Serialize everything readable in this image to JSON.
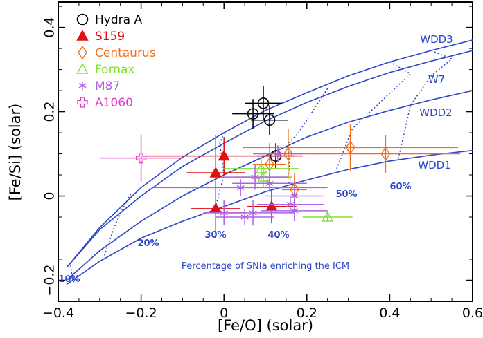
{
  "chart_data": {
    "type": "scatter",
    "title": "",
    "xlabel": "[Fe/O] (solar)",
    "ylabel": "[Fe/Si] (solar)",
    "xlim": [
      -0.4,
      0.6
    ],
    "ylim": [
      -0.25,
      0.46
    ],
    "x_ticks": [
      -0.4,
      -0.2,
      0,
      0.2,
      0.4,
      0.6
    ],
    "x_tick_labels": [
      "−0.4",
      "−0.2",
      "0",
      "0.2",
      "0.4",
      "0.6"
    ],
    "y_ticks": [
      -0.2,
      0,
      0.2,
      0.4
    ],
    "y_tick_labels": [
      "−0.2",
      "0",
      "0.2",
      "0.4"
    ],
    "grid": false,
    "legend_position": "top-left",
    "colors": {
      "axis": "#000000",
      "model": "#2b46c8",
      "hydra": "#000000",
      "s159": "#e01010",
      "centaurus": "#f07020",
      "fornax": "#80e030",
      "m87": "#b060e0",
      "a1060": "#e040c0"
    },
    "series": [
      {
        "name": "Hydra A",
        "color_key": "hydra",
        "marker": "circle-open",
        "points": [
          {
            "x": 0.07,
            "y": 0.195,
            "xerr": 0.05,
            "yerr": 0.035
          },
          {
            "x": 0.095,
            "y": 0.22,
            "xerr": 0.045,
            "yerr": 0.04
          },
          {
            "x": 0.11,
            "y": 0.18,
            "xerr": 0.045,
            "yerr": 0.035
          },
          {
            "x": 0.125,
            "y": 0.095,
            "xerr": 0.045,
            "yerr": 0.03
          }
        ]
      },
      {
        "name": "S159",
        "color_key": "s159",
        "marker": "triangle-filled",
        "points": [
          {
            "x": 0.0,
            "y": 0.095,
            "xerr": 0.19,
            "yerr": 0.045
          },
          {
            "x": -0.02,
            "y": 0.055,
            "xerr": 0.07,
            "yerr": 0.09
          },
          {
            "x": -0.02,
            "y": -0.03,
            "xerr": 0.06,
            "yerr": 0.07
          },
          {
            "x": 0.115,
            "y": -0.025,
            "xerr": 0.06,
            "yerr": 0.04
          }
        ]
      },
      {
        "name": "Centaurus",
        "color_key": "centaurus",
        "marker": "diamond-open",
        "points": [
          {
            "x": 0.155,
            "y": 0.1,
            "xerr": 0.07,
            "yerr": 0.06
          },
          {
            "x": 0.305,
            "y": 0.115,
            "xerr": 0.26,
            "yerr": 0.055
          },
          {
            "x": 0.39,
            "y": 0.1,
            "xerr": 0.18,
            "yerr": 0.045
          },
          {
            "x": 0.11,
            "y": 0.075,
            "xerr": 0.04,
            "yerr": 0.05
          },
          {
            "x": 0.17,
            "y": 0.015,
            "xerr": 0.03,
            "yerr": 0.04
          }
        ]
      },
      {
        "name": "Fornax",
        "color_key": "fornax",
        "marker": "triangle-open",
        "points": [
          {
            "x": 0.09,
            "y": 0.065,
            "xerr": 0.09,
            "yerr": 0.03
          },
          {
            "x": 0.095,
            "y": 0.045,
            "xerr": 0.07,
            "yerr": 0.025
          },
          {
            "x": 0.25,
            "y": -0.05,
            "xerr": 0.06,
            "yerr": 0.01
          }
        ]
      },
      {
        "name": "M87",
        "color_key": "m87",
        "marker": "asterisk",
        "points": [
          {
            "x": 0.13,
            "y": 0.1,
            "xerr": 0.06,
            "yerr": 0.02
          },
          {
            "x": 0.075,
            "y": 0.045,
            "xerr": 0.08,
            "yerr": 0.03
          },
          {
            "x": 0.11,
            "y": 0.03,
            "xerr": 0.09,
            "yerr": 0.02
          },
          {
            "x": 0.04,
            "y": 0.02,
            "xerr": 0.21,
            "yerr": 0.02
          },
          {
            "x": 0.17,
            "y": 0.0,
            "xerr": 0.07,
            "yerr": 0.02
          },
          {
            "x": 0.16,
            "y": -0.02,
            "xerr": 0.08,
            "yerr": 0.02
          },
          {
            "x": 0.17,
            "y": -0.035,
            "xerr": 0.08,
            "yerr": 0.025
          },
          {
            "x": 0.0,
            "y": -0.04,
            "xerr": 0.05,
            "yerr": 0.03
          },
          {
            "x": 0.07,
            "y": -0.04,
            "xerr": 0.1,
            "yerr": 0.03
          },
          {
            "x": 0.05,
            "y": -0.05,
            "xerr": 0.07,
            "yerr": 0.02
          }
        ]
      },
      {
        "name": "A1060",
        "color_key": "a1060",
        "marker": "plus-open",
        "points": [
          {
            "x": -0.2,
            "y": 0.09,
            "xerr": 0.1,
            "yerr": 0.055
          }
        ]
      }
    ],
    "model_curves": [
      {
        "name": "WDD3",
        "points": [
          [
            -0.38,
            -0.17
          ],
          [
            -0.3,
            -0.075
          ],
          [
            -0.2,
            0.02
          ],
          [
            -0.1,
            0.092
          ],
          [
            0.0,
            0.15
          ],
          [
            0.1,
            0.203
          ],
          [
            0.2,
            0.245
          ],
          [
            0.3,
            0.285
          ],
          [
            0.4,
            0.318
          ],
          [
            0.5,
            0.345
          ],
          [
            0.6,
            0.37
          ]
        ]
      },
      {
        "name": "W7",
        "points": [
          [
            -0.38,
            -0.17
          ],
          [
            -0.3,
            -0.08
          ],
          [
            -0.2,
            0.0
          ],
          [
            -0.1,
            0.07
          ],
          [
            0.0,
            0.125
          ],
          [
            0.1,
            0.178
          ],
          [
            0.2,
            0.222
          ],
          [
            0.3,
            0.26
          ],
          [
            0.4,
            0.293
          ],
          [
            0.5,
            0.32
          ],
          [
            0.6,
            0.345
          ]
        ]
      },
      {
        "name": "WDD2",
        "points": [
          [
            -0.38,
            -0.2
          ],
          [
            -0.3,
            -0.13
          ],
          [
            -0.2,
            -0.06
          ],
          [
            -0.1,
            0.0
          ],
          [
            0.0,
            0.05
          ],
          [
            0.1,
            0.095
          ],
          [
            0.2,
            0.14
          ],
          [
            0.3,
            0.175
          ],
          [
            0.4,
            0.203
          ],
          [
            0.5,
            0.228
          ],
          [
            0.6,
            0.25
          ]
        ]
      },
      {
        "name": "WDD1",
        "points": [
          [
            -0.38,
            -0.21
          ],
          [
            -0.3,
            -0.155
          ],
          [
            -0.2,
            -0.1
          ],
          [
            -0.1,
            -0.06
          ],
          [
            0.0,
            -0.025
          ],
          [
            0.1,
            0.01
          ],
          [
            0.2,
            0.038
          ],
          [
            0.3,
            0.063
          ],
          [
            0.4,
            0.083
          ],
          [
            0.5,
            0.097
          ],
          [
            0.6,
            0.108
          ]
        ]
      }
    ],
    "model_labels": [
      "WDD3",
      "W7",
      "WDD2",
      "WDD1"
    ],
    "percentage_lines": [
      {
        "label": "10%",
        "points": [
          [
            -0.37,
            -0.165
          ],
          [
            -0.365,
            -0.2
          ]
        ]
      },
      {
        "label": "20%",
        "points": [
          [
            -0.225,
            0.005
          ],
          [
            -0.245,
            -0.03
          ],
          [
            -0.265,
            -0.075
          ],
          [
            -0.29,
            -0.145
          ]
        ]
      },
      {
        "label": "30%",
        "points": [
          [
            0.0,
            0.15
          ],
          [
            -0.01,
            0.125
          ],
          [
            0.0,
            0.05
          ],
          [
            -0.02,
            -0.025
          ]
        ]
      },
      {
        "label": "40%",
        "points": [
          [
            0.25,
            0.255
          ],
          [
            0.18,
            0.15
          ],
          [
            0.155,
            0.125
          ],
          [
            0.16,
            0.035
          ],
          [
            0.155,
            0.03
          ]
        ]
      },
      {
        "label": "50%",
        "points": [
          [
            0.4,
            0.318
          ],
          [
            0.45,
            0.29
          ],
          [
            0.38,
            0.225
          ],
          [
            0.31,
            0.16
          ],
          [
            0.27,
            0.06
          ]
        ]
      },
      {
        "label": "60%",
        "points": [
          [
            0.5,
            0.345
          ],
          [
            0.55,
            0.325
          ],
          [
            0.5,
            0.285
          ],
          [
            0.45,
            0.215
          ],
          [
            0.42,
            0.085
          ]
        ]
      }
    ],
    "percentage_labels": [
      "10%",
      "20%",
      "30%",
      "40%",
      "50%",
      "60%"
    ],
    "annotation": "Percentage of SNIa enriching the ICM"
  }
}
